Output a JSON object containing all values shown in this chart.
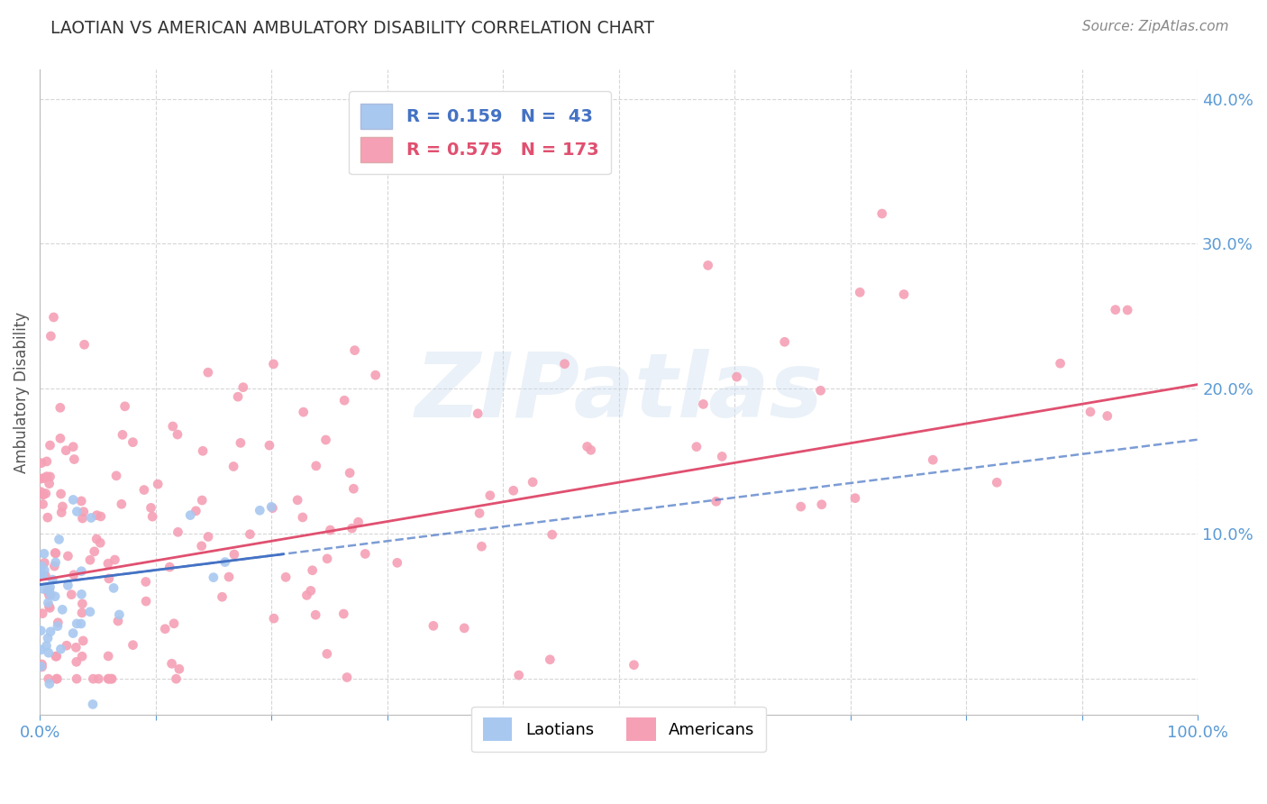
{
  "title": "LAOTIAN VS AMERICAN AMBULATORY DISABILITY CORRELATION CHART",
  "source": "Source: ZipAtlas.com",
  "ylabel": "Ambulatory Disability",
  "xlim": [
    0,
    1.0
  ],
  "ylim": [
    -0.025,
    0.42
  ],
  "laotian_R": 0.159,
  "laotian_N": 43,
  "american_R": 0.575,
  "american_N": 173,
  "laotian_color": "#A8C8F0",
  "american_color": "#F5A0B5",
  "laotian_line_color": "#4472C4",
  "american_line_color": "#E05070",
  "background_color": "#FFFFFF",
  "grid_color": "#CCCCCC",
  "tick_color": "#5B9BD5",
  "watermark_text": "ZIPatlas",
  "title_color": "#333333",
  "source_color": "#888888",
  "ylabel_color": "#555555"
}
